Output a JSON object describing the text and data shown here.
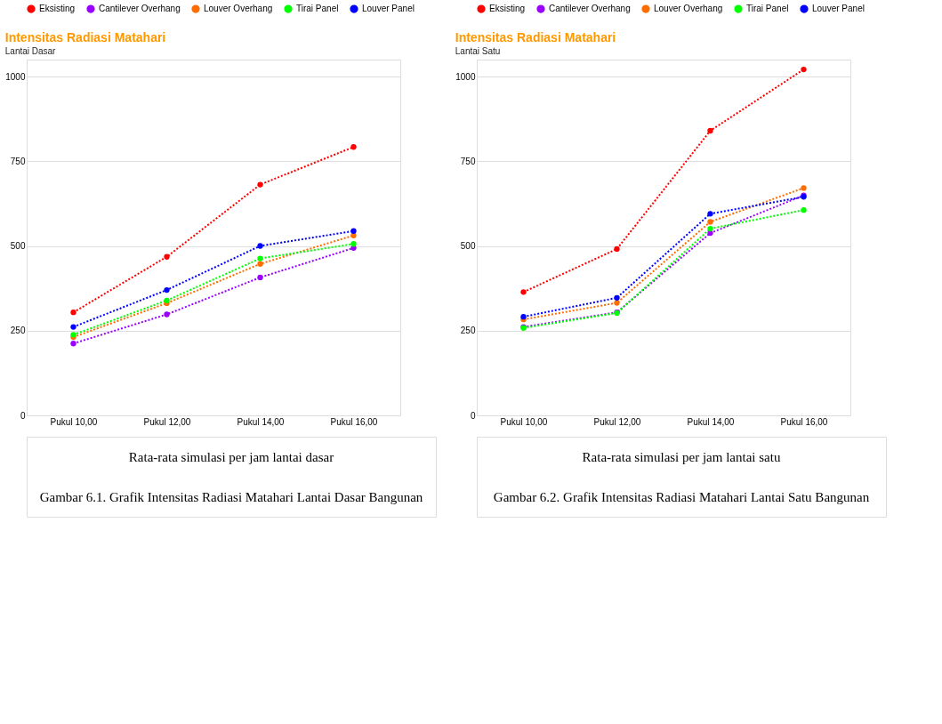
{
  "chart_data": [
    {
      "type": "line",
      "title": "Intensitas Radiasi Matahari",
      "subtitle": "Lantai Dasar",
      "categories": [
        "Pukul 10,00",
        "Pukul 12,00",
        "Pukul 14,00",
        "Pukul 16,00"
      ],
      "series": [
        {
          "name": "Eksisting",
          "color": "#ff0000",
          "values": [
            304,
            468,
            681,
            792
          ]
        },
        {
          "name": "Cantilever Overhang",
          "color": "#9900ff",
          "values": [
            212,
            298,
            407,
            494
          ]
        },
        {
          "name": "Louver Overhang",
          "color": "#ff6d01",
          "values": [
            231,
            331,
            447,
            531
          ]
        },
        {
          "name": "Tirai Panel",
          "color": "#00ff00",
          "values": [
            238,
            339,
            463,
            506
          ]
        },
        {
          "name": "Louver Panel",
          "color": "#0000ff",
          "values": [
            261,
            370,
            500,
            544
          ]
        }
      ],
      "ylim": [
        0,
        1050
      ],
      "yticks": [
        0,
        250,
        500,
        750,
        1000
      ],
      "grid": "y",
      "legend": "top left",
      "marker": "circle",
      "line_style": "dotted",
      "annotations": [
        "Rata-rata simulasi per jam lantai dasar",
        "Gambar 6.1. Grafik Intensitas Radiasi Matahari Lantai Dasar Bangunan"
      ]
    },
    {
      "type": "line",
      "title": "Intensitas Radiasi Matahari",
      "subtitle": "Lantai Satu",
      "categories": [
        "Pukul 10,00",
        "Pukul 12,00",
        "Pukul 14,00",
        "Pukul 16,00"
      ],
      "series": [
        {
          "name": "Eksisting",
          "color": "#ff0000",
          "values": [
            364,
            491,
            840,
            1021
          ]
        },
        {
          "name": "Cantilever Overhang",
          "color": "#9900ff",
          "values": [
            261,
            304,
            538,
            649
          ]
        },
        {
          "name": "Louver Overhang",
          "color": "#ff6d01",
          "values": [
            283,
            332,
            571,
            671
          ]
        },
        {
          "name": "Tirai Panel",
          "color": "#00ff00",
          "values": [
            258,
            302,
            551,
            606
          ]
        },
        {
          "name": "Louver Panel",
          "color": "#0000ff",
          "values": [
            291,
            347,
            595,
            645
          ]
        }
      ],
      "ylim": [
        0,
        1050
      ],
      "yticks": [
        0,
        250,
        500,
        750,
        1000
      ],
      "grid": "y",
      "legend": "top left",
      "marker": "circle",
      "line_style": "dotted",
      "annotations": [
        "Rata-rata simulasi per jam lantai satu",
        "Gambar 6.2. Grafik Intensitas Radiasi Matahari Lantai Satu Bangunan"
      ]
    }
  ]
}
